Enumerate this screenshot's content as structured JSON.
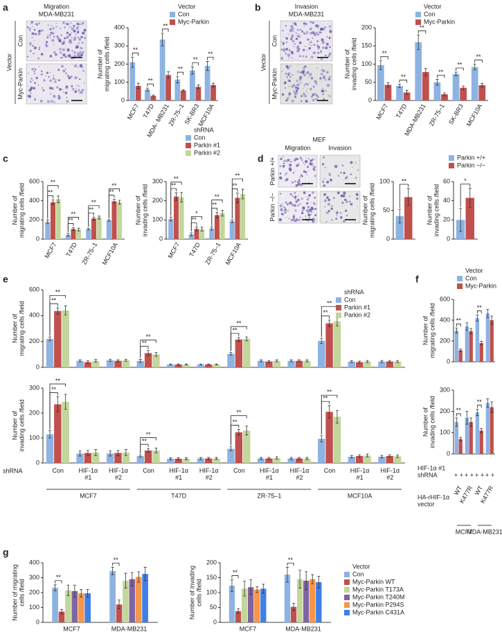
{
  "chart_data": [
    {
      "type": "bar",
      "panel": "a",
      "legend_title": "Vector",
      "y_label": [
        "Number of",
        "migrating cells /field"
      ],
      "categories": [
        "MCF7",
        "T47D",
        "MDA- MB231",
        "ZR-75–1",
        "SK-BR3",
        "MCF10A"
      ],
      "series": [
        {
          "name": "Con",
          "color": "#8db3e2",
          "values": [
            210,
            60,
            335,
            115,
            165,
            190
          ],
          "errors": [
            28,
            8,
            35,
            18,
            20,
            25
          ]
        },
        {
          "name": "Myc-Parkin",
          "color": "#c0504d",
          "values": [
            80,
            25,
            140,
            55,
            75,
            85
          ],
          "errors": [
            15,
            5,
            18,
            5,
            10,
            10
          ]
        }
      ],
      "significance": [
        "**",
        "**",
        "**",
        "**",
        "**",
        "**"
      ],
      "ylim": [
        0,
        400
      ],
      "yticks": [
        0,
        100,
        200,
        300,
        400
      ]
    },
    {
      "type": "bar",
      "panel": "b",
      "legend_title": "Vector",
      "y_label": [
        "Number of",
        "invading cells /field"
      ],
      "categories": [
        "MCF7",
        "T47D",
        "MDA-MB231",
        "ZR-75–1",
        "SK-BR3",
        "MCF10A"
      ],
      "series": [
        {
          "name": "Con",
          "color": "#8db3e2",
          "values": [
            97,
            40,
            160,
            50,
            73,
            92
          ],
          "errors": [
            12,
            5,
            20,
            8,
            5,
            8
          ]
        },
        {
          "name": "Myc-Parkin",
          "color": "#c0504d",
          "values": [
            43,
            22,
            78,
            17,
            35,
            42
          ],
          "errors": [
            6,
            6,
            10,
            4,
            5,
            5
          ]
        }
      ],
      "significance": [
        "**",
        "**",
        "**",
        "**",
        "**",
        "**"
      ],
      "ylim": [
        0,
        200
      ],
      "yticks": [
        0,
        50,
        100,
        150,
        200
      ]
    },
    {
      "type": "bar",
      "panel": "c",
      "legend_title": "shRNA",
      "y_label": [
        "Number of",
        "migrating cells /field"
      ],
      "categories": [
        "MCF7",
        "T47D",
        "ZR-75–1",
        "MCF10A"
      ],
      "series": [
        {
          "name": "Con",
          "color": "#8db3e2",
          "values": [
            180,
            45,
            105,
            195
          ],
          "errors": [
            20,
            15,
            10,
            8
          ]
        },
        {
          "name": "Parkin #1",
          "color": "#c0504d",
          "values": [
            385,
            105,
            215,
            395
          ],
          "errors": [
            25,
            15,
            15,
            20
          ]
        },
        {
          "name": "Parkin #2",
          "color": "#c3d69b",
          "values": [
            415,
            100,
            225,
            385
          ],
          "errors": [
            35,
            15,
            15,
            20
          ]
        }
      ],
      "significance": [
        [
          "**",
          "**"
        ],
        [
          "**",
          "**"
        ],
        [
          "**",
          "**"
        ],
        [
          "**",
          "**"
        ]
      ],
      "ylim": [
        0,
        600
      ],
      "yticks": [
        0,
        200,
        400,
        600
      ]
    },
    {
      "type": "bar",
      "y_label": [
        "Number of",
        "invading cells /field"
      ],
      "categories": [
        "MCF7",
        "T47D",
        "ZR-75–1",
        "MCF10A"
      ],
      "series": [
        {
          "name": "Con",
          "color": "#8db3e2",
          "values": [
            105,
            25,
            55,
            93
          ],
          "errors": [
            10,
            8,
            8,
            7
          ]
        },
        {
          "name": "Parkin #1",
          "color": "#c0504d",
          "values": [
            222,
            53,
            125,
            215
          ],
          "errors": [
            20,
            10,
            15,
            25
          ]
        },
        {
          "name": "Parkin #2",
          "color": "#c3d69b",
          "values": [
            218,
            52,
            135,
            235
          ],
          "errors": [
            25,
            10,
            15,
            25
          ]
        }
      ],
      "significance": [
        [
          "**",
          "**"
        ],
        [
          "**",
          "*"
        ],
        [
          "**",
          "**"
        ],
        [
          "**",
          "**"
        ]
      ],
      "ylim": [
        0,
        300
      ],
      "yticks": [
        0,
        100,
        200,
        300
      ]
    },
    {
      "type": "bar",
      "panel": "d",
      "y_label": [
        "Number of",
        "migrating cells /field"
      ],
      "categories": [
        null
      ],
      "series": [
        {
          "name": "Parkin +/+",
          "color": "#8db3e2",
          "values": [
            40
          ],
          "errors": [
            12
          ]
        },
        {
          "name": "Parkin −/−",
          "color": "#c0504d",
          "values": [
            73
          ],
          "errors": [
            15
          ]
        }
      ],
      "significance": [
        "**"
      ],
      "ylim": [
        0,
        100
      ],
      "yticks": [
        0,
        50,
        100
      ]
    },
    {
      "type": "bar",
      "y_label": [
        "Number of",
        "invading cells /field"
      ],
      "categories": [
        null
      ],
      "series": [
        {
          "name": "Parkin +/+",
          "color": "#8db3e2",
          "values": [
            20
          ],
          "errors": [
            12
          ]
        },
        {
          "name": "Parkin −/−",
          "color": "#c0504d",
          "values": [
            43
          ],
          "errors": [
            10
          ]
        }
      ],
      "significance": [
        "*"
      ],
      "ylim": [
        0,
        60
      ],
      "yticks": [
        0,
        20,
        40,
        60
      ]
    },
    {
      "type": "bar",
      "panel": "e",
      "legend_title": "shRNA",
      "y_label": [
        "Number of",
        "migrating cells /field"
      ],
      "categories": [
        null,
        null,
        null,
        null,
        null,
        null,
        null,
        null,
        null,
        null,
        null,
        null
      ],
      "series": [
        {
          "name": "Con",
          "color": "#8db3e2",
          "values": [
            220,
            50,
            55,
            50,
            22,
            22,
            105,
            50,
            50,
            205,
            45,
            45
          ],
          "errors": [
            15,
            8,
            8,
            12,
            4,
            4,
            10,
            8,
            8,
            20,
            8,
            8
          ]
        },
        {
          "name": "Parkin #1",
          "color": "#c0504d",
          "values": [
            435,
            40,
            50,
            110,
            22,
            22,
            215,
            45,
            50,
            340,
            40,
            45
          ],
          "errors": [
            25,
            10,
            8,
            20,
            4,
            4,
            15,
            8,
            8,
            25,
            8,
            8
          ]
        },
        {
          "name": "Parkin #2",
          "color": "#c3d69b",
          "values": [
            440,
            50,
            55,
            100,
            22,
            22,
            220,
            50,
            50,
            355,
            45,
            45
          ],
          "errors": [
            35,
            10,
            8,
            15,
            4,
            4,
            15,
            8,
            8,
            35,
            8,
            8
          ]
        }
      ],
      "significance": [
        [
          "**",
          "**"
        ],
        null,
        null,
        [
          "**",
          "**"
        ],
        null,
        null,
        [
          "**",
          "**"
        ],
        null,
        null,
        [
          "**",
          "**"
        ],
        null,
        null
      ],
      "ylim": [
        0,
        600
      ],
      "yticks": [
        0,
        200,
        400,
        600
      ]
    },
    {
      "type": "bar",
      "y_label": [
        "Number of",
        "invading cells /field"
      ],
      "categories": [
        "Con",
        "HIF-1α #1",
        "HIF-1α #2",
        "Con",
        "HIF-1α #1",
        "HIF-1α #2",
        "Con",
        "HIF-1α #1",
        "HIF-1α #2",
        "Con",
        "HIF-1α #1",
        "HIF-1α #2"
      ],
      "x_row_label": "shRNA",
      "x_groups": [
        "MCF7",
        "T47D",
        "ZR-75–1",
        "MCF10A"
      ],
      "series": [
        {
          "name": "Con",
          "color": "#8db3e2",
          "values": [
            115,
            38,
            38,
            28,
            17,
            18,
            57,
            18,
            18,
            97,
            25,
            25
          ],
          "errors": [
            15,
            10,
            10,
            5,
            4,
            4,
            8,
            4,
            4,
            12,
            5,
            5
          ]
        },
        {
          "name": "Parkin #1",
          "color": "#c0504d",
          "values": [
            235,
            40,
            40,
            50,
            17,
            18,
            123,
            18,
            18,
            205,
            28,
            28
          ],
          "errors": [
            30,
            10,
            10,
            8,
            4,
            4,
            12,
            4,
            4,
            25,
            5,
            5
          ]
        },
        {
          "name": "Parkin #2",
          "color": "#c3d69b",
          "values": [
            245,
            42,
            42,
            50,
            17,
            18,
            130,
            20,
            18,
            185,
            30,
            27
          ],
          "errors": [
            30,
            12,
            12,
            10,
            4,
            4,
            18,
            5,
            4,
            25,
            6,
            5
          ]
        }
      ],
      "significance": [
        [
          "**",
          "**"
        ],
        null,
        null,
        [
          "**",
          "**"
        ],
        null,
        null,
        [
          "**",
          "**"
        ],
        null,
        null,
        [
          "**",
          "**"
        ],
        null,
        null
      ],
      "ylim": [
        0,
        300
      ],
      "yticks": [
        0,
        100,
        200,
        300
      ]
    },
    {
      "type": "bar",
      "panel": "f",
      "legend_title": "Vector",
      "y_label": [
        "Number of",
        "migrating cells /field"
      ],
      "categories": [
        null,
        null,
        null,
        null
      ],
      "series": [
        {
          "name": "Con",
          "color": "#8db3e2",
          "values": [
            300,
            340,
            420,
            465
          ],
          "errors": [
            25,
            35,
            30,
            40
          ]
        },
        {
          "name": "Myc-Parkin",
          "color": "#c0504d",
          "values": [
            110,
            295,
            180,
            400
          ],
          "errors": [
            12,
            25,
            18,
            40
          ]
        }
      ],
      "significance": [
        "**",
        null,
        "**",
        null
      ],
      "ylim": [
        0,
        600
      ],
      "yticks": [
        0,
        200,
        400,
        600
      ]
    },
    {
      "type": "bar",
      "y_label": [
        "Number of",
        "invading cells /field"
      ],
      "categories": [
        "WT",
        "K477R",
        "WT",
        "K477R"
      ],
      "hif_label": [
        "HIF-1α #1",
        "shRNA"
      ],
      "hif_marks": [
        "+ +",
        "+ +",
        "+ +",
        "+ +"
      ],
      "vector_label": [
        "HA-rHIF-1α",
        "vector"
      ],
      "x_groups": [
        "MCF7",
        "MDA-MB231"
      ],
      "series": [
        {
          "name": "Con",
          "color": "#8db3e2",
          "values": [
            150,
            170,
            195,
            240
          ],
          "errors": [
            20,
            30,
            15,
            20
          ]
        },
        {
          "name": "Myc-Parkin",
          "color": "#c0504d",
          "values": [
            70,
            150,
            110,
            220
          ],
          "errors": [
            8,
            20,
            10,
            25
          ]
        }
      ],
      "significance": [
        "**",
        null,
        "**",
        null
      ],
      "ylim": [
        0,
        300
      ],
      "yticks": [
        0,
        100,
        200,
        300
      ]
    },
    {
      "type": "bar",
      "panel": "g",
      "legend_title": "Vector",
      "y_label": [
        "Number of migrating",
        "cells /field"
      ],
      "categories": [
        "MCF7",
        "MDA-MB231"
      ],
      "series": [
        {
          "name": "Con",
          "color": "#8db3e2",
          "values": [
            232,
            345
          ],
          "errors": [
            20,
            25
          ]
        },
        {
          "name": "Myc-Parkin WT",
          "color": "#c0504d",
          "values": [
            72,
            120
          ],
          "errors": [
            15,
            30
          ]
        },
        {
          "name": "Myc-Parkin T173A",
          "color": "#c3d69b",
          "values": [
            215,
            280
          ],
          "errors": [
            35,
            50
          ]
        },
        {
          "name": "Myc-Parkin T240M",
          "color": "#8064a2",
          "values": [
            210,
            290
          ],
          "errors": [
            40,
            45
          ]
        },
        {
          "name": "Myc-Parkin P294S",
          "color": "#f79646",
          "values": [
            195,
            305
          ],
          "errors": [
            25,
            35
          ]
        },
        {
          "name": "Myc-Parkin C431A",
          "color": "#3f7fe8",
          "values": [
            195,
            325
          ],
          "errors": [
            25,
            45
          ]
        }
      ],
      "significance": [
        "**",
        "**"
      ],
      "ylim": [
        0,
        400
      ],
      "yticks": [
        0,
        100,
        200,
        300,
        400
      ]
    },
    {
      "type": "bar",
      "y_label": [
        "Number of invading",
        "cells /field"
      ],
      "categories": [
        "MCF7",
        "MDA-MB231"
      ],
      "series": [
        {
          "name": "Con",
          "color": "#8db3e2",
          "values": [
            123,
            160
          ],
          "errors": [
            20,
            25
          ]
        },
        {
          "name": "Myc-Parkin WT",
          "color": "#c0504d",
          "values": [
            38,
            52
          ],
          "errors": [
            8,
            12
          ]
        },
        {
          "name": "Myc-Parkin T173A",
          "color": "#c3d69b",
          "values": [
            113,
            145
          ],
          "errors": [
            25,
            30
          ]
        },
        {
          "name": "Myc-Parkin T240M",
          "color": "#8064a2",
          "values": [
            118,
            140
          ],
          "errors": [
            25,
            30
          ]
        },
        {
          "name": "Myc-Parkin P294S",
          "color": "#f79646",
          "values": [
            110,
            145
          ],
          "errors": [
            10,
            15
          ]
        },
        {
          "name": "Myc-Parkin C431A",
          "color": "#3f7fe8",
          "values": [
            113,
            135
          ],
          "errors": [
            15,
            20
          ]
        }
      ],
      "significance": [
        "**",
        "**"
      ],
      "ylim": [
        0,
        200
      ],
      "yticks": [
        0,
        50,
        100,
        150,
        200
      ]
    }
  ],
  "images": [
    {
      "title": [
        "Migration",
        "MDA-MB231"
      ],
      "group": "Vector",
      "rows": [
        "Con",
        "Myc-Parkin"
      ]
    },
    {
      "title": [
        "Invasion",
        "MDA-MB231"
      ],
      "group": "Vector",
      "rows": [
        "Con",
        "Myc-Parkin"
      ]
    },
    {
      "title": [
        "MEF"
      ],
      "columns": [
        "Migration",
        "Invasion"
      ],
      "rows": [
        "Parkin +/+",
        "Parkin −/−"
      ]
    }
  ]
}
